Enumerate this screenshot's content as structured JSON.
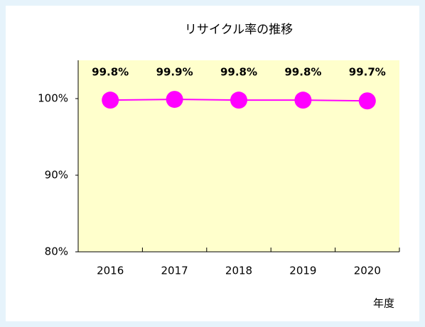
{
  "chart_data": {
    "type": "line",
    "title": "リサイクル率の推移",
    "x_label": "年度",
    "categories": [
      "2016",
      "2017",
      "2018",
      "2019",
      "2020"
    ],
    "series": [
      {
        "name": "リサイクル率",
        "color": "#ff00ff",
        "values": [
          99.8,
          99.9,
          99.8,
          99.8,
          99.7
        ],
        "value_labels": [
          "99.8%",
          "99.9%",
          "99.8%",
          "99.8%",
          "99.7%"
        ]
      }
    ],
    "ylim": [
      80,
      105
    ],
    "yticks": [
      {
        "value": 80,
        "label": "80%"
      },
      {
        "value": 90,
        "label": "90%"
      },
      {
        "value": 100,
        "label": "100%"
      }
    ],
    "plot_background": "#ffffcc"
  }
}
